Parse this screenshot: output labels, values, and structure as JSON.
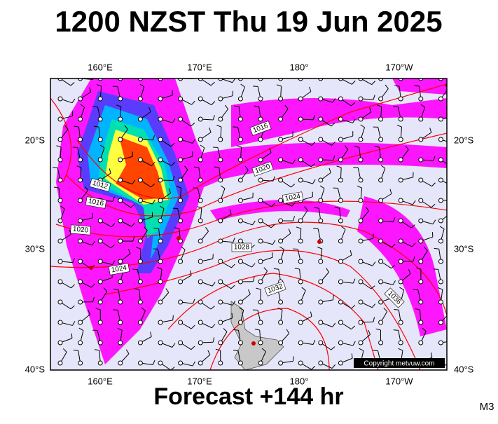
{
  "header": {
    "title": "1200 NZST Thu 19 Jun 2025"
  },
  "map": {
    "longitude_labels": [
      "160°E",
      "170°E",
      "180°",
      "170°W"
    ],
    "latitude_labels": [
      "20°S",
      "30°S",
      "40°S"
    ],
    "isobar_labels": [
      "1016",
      "1020",
      "1012",
      "1016",
      "1020",
      "1024",
      "1024",
      "1028",
      "1032",
      "1036"
    ],
    "copyright": "Copyright metvuw.com"
  },
  "footer": {
    "forecast": "Forecast +144 hr",
    "model": "M3"
  }
}
